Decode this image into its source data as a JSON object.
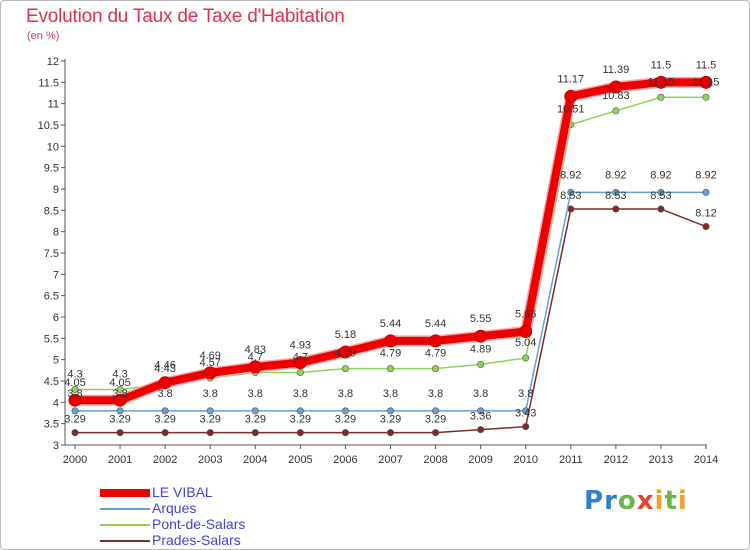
{
  "title": "Evolution du Taux de Taxe d'Habitation",
  "subtitle": "(en %)",
  "logo": {
    "text": "Proxiti",
    "colors": [
      "#2f7fd0",
      "#6db44b",
      "#f0a02a",
      "#e8432e"
    ]
  },
  "chart_data": {
    "type": "line",
    "title": "Evolution du Taux de Taxe d'Habitation",
    "subtitle": "(en %)",
    "xlabel": "",
    "ylabel": "",
    "x": [
      2000,
      2001,
      2002,
      2003,
      2004,
      2005,
      2006,
      2007,
      2008,
      2009,
      2010,
      2011,
      2012,
      2013,
      2014
    ],
    "ylim": [
      3,
      12
    ],
    "yticks": [
      "3",
      "3.5",
      "4",
      "4.5",
      "5",
      "5.5",
      "6",
      "6.5",
      "7",
      "7.5",
      "8",
      "8.5",
      "9",
      "9.5",
      "10",
      "10.5",
      "11",
      "11.5",
      "12"
    ],
    "grid": false,
    "legend_position": "bottom-left",
    "series": [
      {
        "name": "LE VIBAL",
        "color": "#ee0000",
        "values": [
          4.05,
          4.05,
          4.46,
          4.69,
          4.83,
          4.93,
          5.18,
          5.44,
          5.44,
          5.55,
          5.66,
          11.17,
          11.39,
          11.5,
          11.5
        ],
        "labels": [
          "4.05",
          "4.05",
          "4.46",
          "4.69",
          "4.83",
          "4.93",
          "5.18",
          "5.44",
          "5.44",
          "5.55",
          "5.66",
          "11.17",
          "11.39",
          "11.5",
          "11.5"
        ]
      },
      {
        "name": "Arques",
        "color": "#6a9fd0",
        "values": [
          3.8,
          3.8,
          3.8,
          3.8,
          3.8,
          3.8,
          3.8,
          3.8,
          3.8,
          3.8,
          3.8,
          8.92,
          8.92,
          8.92,
          8.92
        ],
        "labels": [
          "3.8",
          "3.8",
          "3.8",
          "3.8",
          "3.8",
          "3.8",
          "3.8",
          "3.8",
          "3.8",
          "3.8",
          "3.8",
          "8.92",
          "8.92",
          "8.92",
          "8.92"
        ]
      },
      {
        "name": "Pont-de-Salars",
        "color": "#8fd45a",
        "values": [
          4.3,
          4.3,
          4.43,
          4.57,
          4.7,
          4.7,
          4.79,
          4.79,
          4.79,
          4.89,
          5.04,
          10.51,
          10.83,
          11.15,
          11.15
        ],
        "labels": [
          "4.3",
          "4.3",
          "4.43",
          "4.57",
          "4.7",
          "4.7",
          "4.79",
          "4.79",
          "4.79",
          "4.89",
          "5.04",
          "10.51",
          "10.83",
          "11.15",
          "11.15"
        ]
      },
      {
        "name": "Prades-Salars",
        "color": "#7a2b2b",
        "values": [
          3.29,
          3.29,
          3.29,
          3.29,
          3.29,
          3.29,
          3.29,
          3.29,
          3.29,
          3.36,
          3.43,
          8.53,
          8.53,
          8.53,
          8.12
        ],
        "labels": [
          "3.29",
          "3.29",
          "3.29",
          "3.29",
          "3.29",
          "3.29",
          "3.29",
          "3.29",
          "3.29",
          "3.36",
          "3.43",
          "8.53",
          "8.53",
          "8.53",
          "8.12"
        ]
      }
    ]
  }
}
